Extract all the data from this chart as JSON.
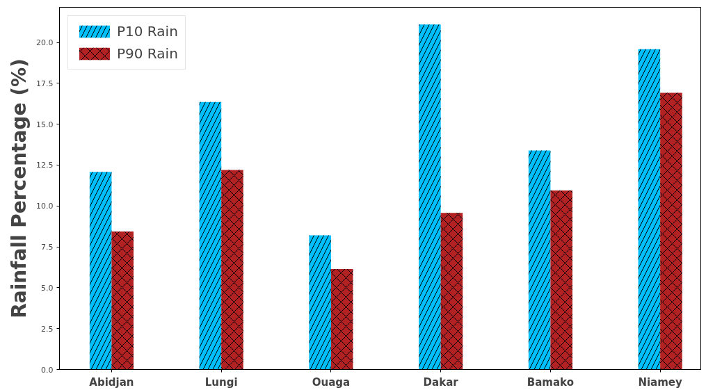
{
  "chart_data": {
    "type": "bar",
    "ylabel": "Rainfall Percentage (%)",
    "categories": [
      "Abidjan",
      "Lungi",
      "Ouaga",
      "Dakar",
      "Bamako",
      "Niamey"
    ],
    "series": [
      {
        "name": "P10 Rain",
        "color": "#00bfff",
        "values": [
          12.08,
          16.36,
          8.21,
          21.1,
          13.39,
          19.59
        ]
      },
      {
        "name": "P90 Rain",
        "color": "#b22222",
        "values": [
          8.44,
          12.2,
          6.14,
          9.58,
          10.95,
          16.92
        ]
      }
    ],
    "ylim": [
      0,
      22.15
    ],
    "yticks": [
      {
        "value": 0,
        "label": "0.0"
      },
      2.5,
      {
        "value": 5,
        "label": "5.0"
      },
      7.5,
      {
        "value": 10,
        "label": "10.0"
      },
      12.5,
      {
        "value": 15,
        "label": "15.0"
      },
      17.5,
      {
        "value": 20,
        "label": "20.0"
      }
    ],
    "grid": false,
    "legend": "top left"
  }
}
